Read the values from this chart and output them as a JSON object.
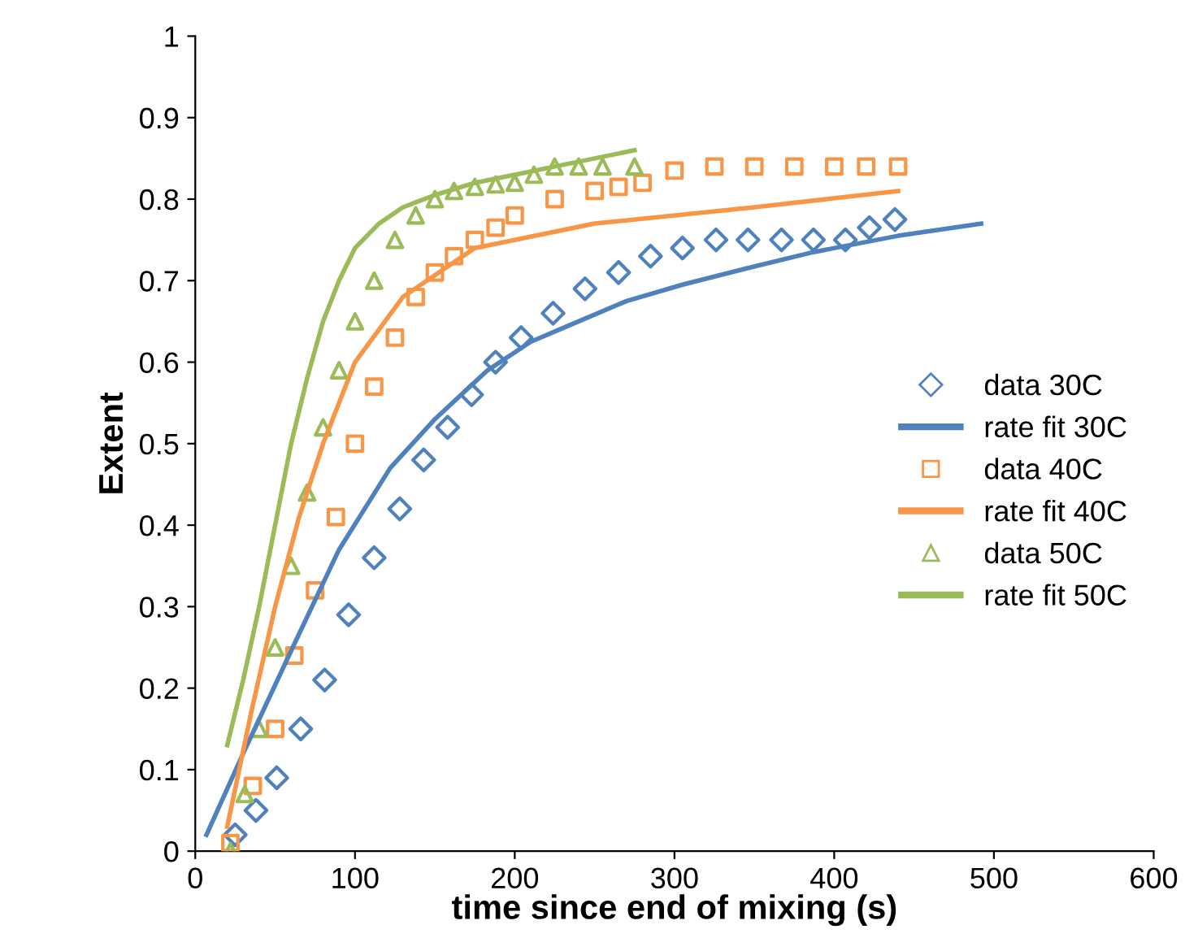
{
  "chart_data": {
    "type": "scatter",
    "xlabel": "time since end of mixing (s)",
    "ylabel": "Extent",
    "xlim": [
      0,
      600
    ],
    "xticks": [
      0,
      100,
      200,
      300,
      400,
      500,
      600
    ],
    "ylim": [
      0,
      1
    ],
    "yticks": [
      0,
      0.1,
      0.2,
      0.3,
      0.4,
      0.5,
      0.6,
      0.7,
      0.8,
      0.9,
      1
    ],
    "grid": false,
    "legend": "right",
    "series": [
      {
        "name": "data 30C",
        "marker": "diamond",
        "color": "#4f81bd",
        "x": [
          25,
          38,
          51,
          66,
          81,
          96,
          112,
          128,
          143,
          158,
          173,
          188,
          204,
          224,
          244,
          265,
          285,
          305,
          326,
          346,
          367,
          387,
          407,
          422,
          438
        ],
        "values": [
          0.02,
          0.05,
          0.09,
          0.15,
          0.21,
          0.29,
          0.36,
          0.42,
          0.48,
          0.52,
          0.56,
          0.6,
          0.63,
          0.66,
          0.69,
          0.71,
          0.73,
          0.74,
          0.75,
          0.75,
          0.75,
          0.75,
          0.75,
          0.765,
          0.775
        ]
      },
      {
        "name": "rate fit 30C",
        "type": "line",
        "marker": "none",
        "line_style": "solid",
        "color": "#4f81bd",
        "x": [
          7,
          30,
          61,
          90,
          122,
          150,
          183,
          210,
          234,
          270,
          305,
          345,
          387,
          440,
          492
        ],
        "values": [
          0.02,
          0.12,
          0.25,
          0.37,
          0.47,
          0.53,
          0.59,
          0.625,
          0.645,
          0.675,
          0.695,
          0.715,
          0.735,
          0.755,
          0.77
        ]
      },
      {
        "name": "data 40C",
        "marker": "square",
        "color": "#f79646",
        "x": [
          22,
          36,
          50,
          62,
          75,
          88,
          100,
          112,
          125,
          138,
          150,
          162,
          175,
          188,
          200,
          225,
          250,
          265,
          280,
          300,
          325,
          350,
          375,
          400,
          420,
          440
        ],
        "values": [
          0.01,
          0.08,
          0.15,
          0.24,
          0.32,
          0.41,
          0.5,
          0.57,
          0.63,
          0.68,
          0.71,
          0.73,
          0.75,
          0.765,
          0.78,
          0.8,
          0.81,
          0.815,
          0.82,
          0.835,
          0.84,
          0.84,
          0.84,
          0.84,
          0.84,
          0.84
        ]
      },
      {
        "name": "rate fit 40C",
        "type": "line",
        "marker": "none",
        "line_style": "solid",
        "color": "#f79646",
        "x": [
          20,
          35,
          50,
          65,
          80,
          100,
          130,
          175,
          250,
          350,
          440
        ],
        "values": [
          0.03,
          0.17,
          0.3,
          0.41,
          0.5,
          0.6,
          0.68,
          0.74,
          0.77,
          0.79,
          0.81
        ]
      },
      {
        "name": "data 50C",
        "marker": "triangle",
        "color": "#9bbb59",
        "x": [
          22,
          31,
          40,
          50,
          60,
          70,
          80,
          90,
          100,
          112,
          125,
          138,
          150,
          162,
          175,
          188,
          200,
          212,
          225,
          240,
          255,
          275
        ],
        "values": [
          0.0,
          0.07,
          0.15,
          0.25,
          0.35,
          0.44,
          0.52,
          0.59,
          0.65,
          0.7,
          0.75,
          0.78,
          0.8,
          0.81,
          0.815,
          0.818,
          0.82,
          0.83,
          0.84,
          0.84,
          0.84,
          0.84
        ]
      },
      {
        "name": "rate fit 50C",
        "type": "line",
        "marker": "none",
        "line_style": "solid",
        "color": "#9bbb59",
        "x": [
          20,
          30,
          40,
          50,
          60,
          70,
          80,
          90,
          100,
          115,
          130,
          150,
          175,
          200,
          225,
          250,
          275
        ],
        "values": [
          0.13,
          0.21,
          0.3,
          0.4,
          0.5,
          0.58,
          0.65,
          0.7,
          0.74,
          0.77,
          0.79,
          0.805,
          0.82,
          0.83,
          0.84,
          0.85,
          0.86
        ]
      }
    ]
  }
}
